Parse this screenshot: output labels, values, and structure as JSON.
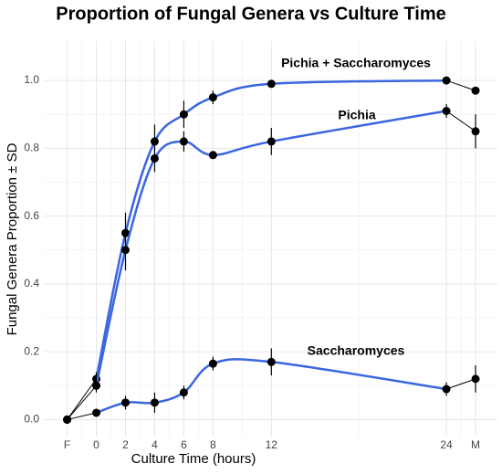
{
  "chart_data": {
    "type": "line",
    "title": "Proportion of Fungal Genera vs Culture Time",
    "x_label": "Culture Time (hours)",
    "y_label": "Fungal Genera Proportion ± SD",
    "x": [
      -2,
      0,
      2,
      4,
      6,
      8,
      12,
      24,
      26
    ],
    "series": [
      {
        "name": "Pichia + Saccharomyces",
        "color": "#3a66e0",
        "values": [
          0,
          0.12,
          0.55,
          0.82,
          0.9,
          0.95,
          0.99,
          1.0,
          0.97
        ],
        "errors": [
          0,
          0.02,
          0.06,
          0.05,
          0.04,
          0.02,
          0.01,
          0.01,
          0.01
        ]
      },
      {
        "name": "Pichia",
        "color": "#3a66e0",
        "values": [
          0,
          0.1,
          0.5,
          0.77,
          0.82,
          0.78,
          0.82,
          0.91,
          0.85
        ],
        "errors": [
          0,
          0.02,
          0.06,
          0.04,
          0.03,
          0.01,
          0.04,
          0.02,
          0.05
        ]
      },
      {
        "name": "Saccharomyces",
        "color": "#3a66e0",
        "values": [
          0,
          0.02,
          0.05,
          0.05,
          0.08,
          0.165,
          0.17,
          0.09,
          0.12
        ],
        "errors": [
          0,
          0.01,
          0.02,
          0.03,
          0.02,
          0.02,
          0.04,
          0.02,
          0.04
        ]
      }
    ],
    "xlim": [
      -3.6,
      27.5
    ],
    "ylim": [
      -0.05,
      1.116
    ],
    "xticks": [
      {
        "value": -2,
        "label": "F"
      },
      0,
      2,
      4,
      6,
      8,
      12,
      24,
      {
        "value": 26,
        "label": "M"
      }
    ],
    "yticks": [
      {
        "value": 0,
        "label": "0.0"
      },
      0.2,
      0.4,
      0.6,
      0.8,
      {
        "value": 1,
        "label": "1.0"
      }
    ],
    "grid": true
  }
}
